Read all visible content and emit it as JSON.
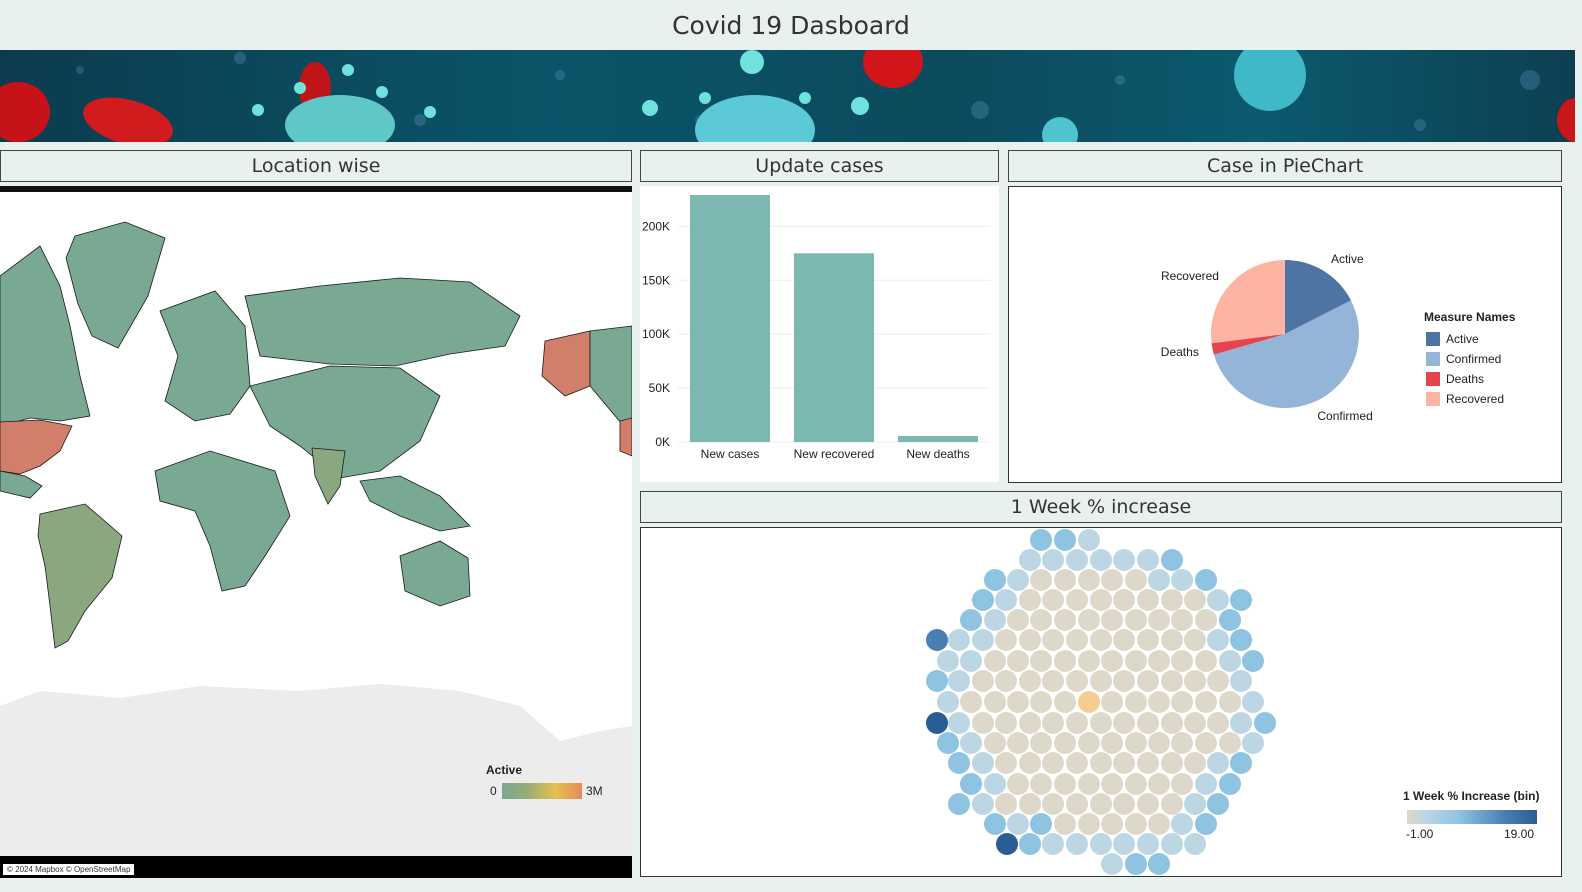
{
  "page": {
    "title": "Covid 19 Dasboard"
  },
  "colors": {
    "header_bg": "#e9f1ef",
    "bar_teal": "#7ab8b1",
    "map_land": "#79a993",
    "map_high": "#d17e6b",
    "map_mid": "#8aa77f",
    "antarctica": "#ececec",
    "pie_active": "#4e74a4",
    "pie_confirmed": "#94b4d8",
    "pie_deaths": "#e8424d",
    "pie_recovered": "#fdb4a3",
    "hex_neutral": "#ddd8c9",
    "hex_light": "#bcd6e4",
    "hex_mid": "#8fc3e2",
    "hex_dark": "#4a7fb4",
    "hex_darkest": "#2a5e93",
    "hex_orange": "#f5cd94"
  },
  "map_panel": {
    "header": "Location wise",
    "legend": {
      "title": "Active",
      "min_label": "0",
      "max_label": "3M"
    },
    "credit": "© 2024 Mapbox © OpenStreetMap"
  },
  "bar_panel": {
    "header": "Update cases",
    "chart_data": {
      "type": "bar",
      "categories": [
        "New cases",
        "New recovered",
        "New deaths"
      ],
      "values": [
        229000,
        175000,
        5500
      ],
      "ylim": [
        0,
        230000
      ],
      "yticks": [
        0,
        50000,
        100000,
        150000,
        200000
      ],
      "ytick_labels": [
        "0K",
        "50K",
        "100K",
        "150K",
        "200K"
      ],
      "xlabel": "",
      "ylabel": "",
      "grid": true
    }
  },
  "pie_panel": {
    "header": "Case in PieChart",
    "legend_title": "Measure Names",
    "legend_items": [
      "Active",
      "Confirmed",
      "Deaths",
      "Recovered"
    ],
    "chart_data": {
      "type": "pie",
      "categories": [
        "Active",
        "Confirmed",
        "Deaths",
        "Recovered"
      ],
      "values": [
        17.5,
        53,
        2.5,
        27
      ],
      "legend_position": "right"
    }
  },
  "hex_panel": {
    "header": "1 Week % increase",
    "legend": {
      "title": "1 Week % Increase (bin)",
      "min_label": "-1.00",
      "max_label": "19.00"
    }
  }
}
